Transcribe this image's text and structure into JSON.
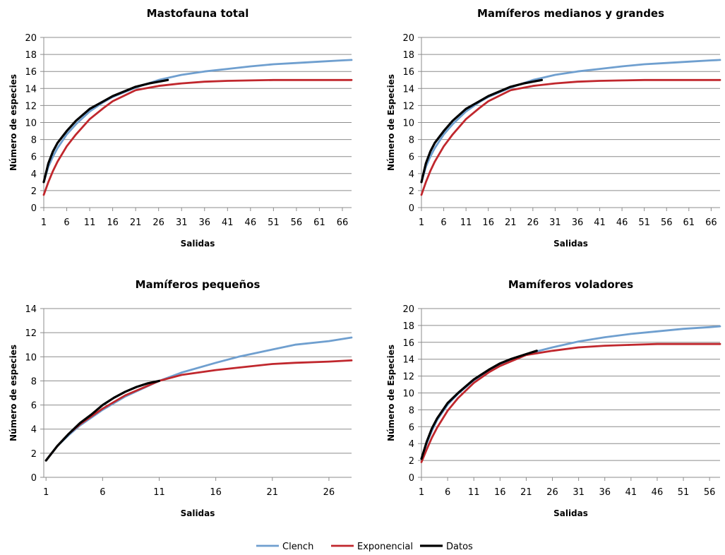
{
  "chart_data": [
    {
      "type": "line",
      "title": "Mastofauna total",
      "xlabel": "Salidas",
      "ylabel": "Número de especies",
      "xlim": [
        1,
        68
      ],
      "ylim": [
        0,
        20
      ],
      "xticks": [
        1,
        6,
        11,
        16,
        21,
        26,
        31,
        36,
        41,
        46,
        51,
        56,
        61,
        66
      ],
      "yticks": [
        0,
        2,
        4,
        6,
        8,
        10,
        12,
        14,
        16,
        18,
        20
      ],
      "series": [
        {
          "name": "Clench",
          "color": "#6f9fcf",
          "x": [
            1,
            2,
            3,
            4,
            6,
            8,
            11,
            14,
            16,
            21,
            26,
            31,
            36,
            41,
            46,
            51,
            56,
            61,
            66,
            68
          ],
          "y": [
            3.0,
            4.8,
            6.0,
            7.0,
            8.6,
            9.8,
            11.3,
            12.4,
            13.0,
            14.1,
            15.0,
            15.6,
            16.0,
            16.3,
            16.6,
            16.85,
            17.0,
            17.15,
            17.3,
            17.35
          ]
        },
        {
          "name": "Exponencial",
          "color": "#c0272d",
          "x": [
            1,
            2,
            3,
            4,
            6,
            8,
            11,
            14,
            16,
            21,
            26,
            31,
            36,
            41,
            46,
            51,
            56,
            61,
            66,
            68
          ],
          "y": [
            1.5,
            3.0,
            4.3,
            5.4,
            7.2,
            8.6,
            10.4,
            11.7,
            12.5,
            13.8,
            14.3,
            14.6,
            14.8,
            14.9,
            14.95,
            15.0,
            15.0,
            15.0,
            15.0,
            15.0
          ]
        },
        {
          "name": "Datos",
          "color": "#000000",
          "x": [
            1,
            2,
            3,
            4,
            6,
            8,
            11,
            14,
            16,
            21,
            24,
            28
          ],
          "y": [
            3.0,
            5.2,
            6.6,
            7.6,
            9.0,
            10.2,
            11.6,
            12.5,
            13.1,
            14.2,
            14.6,
            15.0
          ]
        }
      ]
    },
    {
      "type": "line",
      "title": "Mamíferos medianos y grandes",
      "xlabel": "Salidas",
      "ylabel": "Número de Especies",
      "xlim": [
        1,
        68
      ],
      "ylim": [
        0,
        20
      ],
      "xticks": [
        1,
        6,
        11,
        16,
        21,
        26,
        31,
        36,
        41,
        46,
        51,
        56,
        61,
        66
      ],
      "yticks": [
        0,
        2,
        4,
        6,
        8,
        10,
        12,
        14,
        16,
        18,
        20
      ],
      "series": [
        {
          "name": "Clench",
          "color": "#6f9fcf",
          "x": [
            1,
            2,
            3,
            4,
            6,
            8,
            11,
            14,
            16,
            21,
            26,
            31,
            36,
            41,
            46,
            51,
            56,
            61,
            66,
            68
          ],
          "y": [
            3.0,
            4.8,
            6.0,
            7.0,
            8.6,
            9.8,
            11.3,
            12.4,
            13.0,
            14.1,
            15.0,
            15.6,
            16.0,
            16.3,
            16.6,
            16.85,
            17.0,
            17.15,
            17.3,
            17.35
          ]
        },
        {
          "name": "Exponencial",
          "color": "#c0272d",
          "x": [
            1,
            2,
            3,
            4,
            6,
            8,
            11,
            14,
            16,
            21,
            26,
            31,
            36,
            41,
            46,
            51,
            56,
            61,
            66,
            68
          ],
          "y": [
            1.5,
            3.0,
            4.3,
            5.4,
            7.2,
            8.6,
            10.4,
            11.7,
            12.5,
            13.8,
            14.3,
            14.6,
            14.8,
            14.9,
            14.95,
            15.0,
            15.0,
            15.0,
            15.0,
            15.0
          ]
        },
        {
          "name": "Datos",
          "color": "#000000",
          "x": [
            1,
            2,
            3,
            4,
            6,
            8,
            11,
            14,
            16,
            21,
            24,
            28
          ],
          "y": [
            3.0,
            5.2,
            6.6,
            7.6,
            9.0,
            10.2,
            11.6,
            12.5,
            13.1,
            14.2,
            14.6,
            15.0
          ]
        }
      ]
    },
    {
      "type": "line",
      "title": "Mamíferos pequeños",
      "xlabel": "Salidas",
      "ylabel": "Número de especies",
      "xlim": [
        0.8,
        28
      ],
      "ylim": [
        0,
        14
      ],
      "xticks": [
        1,
        6,
        11,
        16,
        21,
        26
      ],
      "yticks": [
        0,
        2,
        4,
        6,
        8,
        10,
        12,
        14
      ],
      "series": [
        {
          "name": "Clench",
          "color": "#6f9fcf",
          "x": [
            1,
            2,
            3,
            4,
            6,
            8,
            11,
            13,
            16,
            18,
            21,
            23,
            26,
            28
          ],
          "y": [
            1.4,
            2.6,
            3.5,
            4.3,
            5.6,
            6.7,
            8.0,
            8.7,
            9.5,
            10.0,
            10.6,
            11.0,
            11.3,
            11.6
          ]
        },
        {
          "name": "Exponencial",
          "color": "#c0272d",
          "x": [
            1,
            2,
            3,
            4,
            6,
            8,
            11,
            13,
            16,
            18,
            21,
            23,
            26,
            28
          ],
          "y": [
            1.4,
            2.6,
            3.6,
            4.4,
            5.7,
            6.8,
            8.0,
            8.5,
            8.9,
            9.1,
            9.4,
            9.5,
            9.6,
            9.7
          ]
        },
        {
          "name": "Datos",
          "color": "#000000",
          "x": [
            1,
            2,
            3,
            4,
            5,
            6,
            7,
            8,
            9,
            10,
            11
          ],
          "y": [
            1.4,
            2.6,
            3.6,
            4.5,
            5.2,
            6.0,
            6.6,
            7.1,
            7.5,
            7.8,
            8.0
          ]
        }
      ]
    },
    {
      "type": "line",
      "title": "Mamíferos voladores",
      "xlabel": "Salidas",
      "ylabel": "Número de Especies",
      "xlim": [
        1,
        58
      ],
      "ylim": [
        0,
        20
      ],
      "xticks": [
        1,
        6,
        11,
        16,
        21,
        26,
        31,
        36,
        41,
        46,
        51,
        56
      ],
      "yticks": [
        0,
        2,
        4,
        6,
        8,
        10,
        12,
        14,
        16,
        18,
        20
      ],
      "series": [
        {
          "name": "Clench",
          "color": "#6f9fcf",
          "x": [
            1,
            2,
            3,
            4,
            6,
            8,
            11,
            14,
            16,
            21,
            26,
            31,
            36,
            41,
            46,
            51,
            56,
            58
          ],
          "y": [
            2.2,
            4.0,
            5.5,
            6.8,
            8.6,
            9.9,
            11.5,
            12.7,
            13.4,
            14.6,
            15.4,
            16.1,
            16.6,
            17.0,
            17.3,
            17.6,
            17.8,
            17.9
          ]
        },
        {
          "name": "Exponencial",
          "color": "#c0272d",
          "x": [
            1,
            2,
            3,
            4,
            6,
            8,
            11,
            14,
            16,
            21,
            26,
            31,
            36,
            41,
            46,
            51,
            56,
            58
          ],
          "y": [
            1.8,
            3.3,
            4.7,
            5.9,
            7.9,
            9.4,
            11.2,
            12.5,
            13.2,
            14.5,
            15.0,
            15.4,
            15.6,
            15.7,
            15.8,
            15.8,
            15.8,
            15.8
          ]
        },
        {
          "name": "Datos",
          "color": "#000000",
          "x": [
            1,
            2,
            3,
            4,
            6,
            8,
            11,
            14,
            16,
            18,
            21,
            23
          ],
          "y": [
            2.2,
            4.2,
            5.8,
            7.0,
            8.8,
            10.0,
            11.6,
            12.8,
            13.5,
            14.0,
            14.6,
            15.0
          ]
        }
      ]
    }
  ],
  "legend": {
    "placement": "bottom-center",
    "items": [
      {
        "label": "Clench",
        "color": "#6f9fcf"
      },
      {
        "label": "Exponencial",
        "color": "#c0272d"
      },
      {
        "label": "Datos",
        "color": "#000000"
      }
    ]
  }
}
